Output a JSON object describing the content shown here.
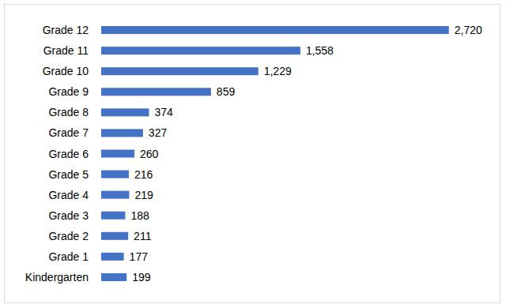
{
  "chart_data": {
    "type": "bar",
    "orientation": "horizontal",
    "categories": [
      "Grade 12",
      "Grade 11",
      "Grade 10",
      "Grade 9",
      "Grade 8",
      "Grade 7",
      "Grade 6",
      "Grade 5",
      "Grade 4",
      "Grade 3",
      "Grade 2",
      "Grade 1",
      "Kindergarten"
    ],
    "values": [
      2720,
      1558,
      1229,
      859,
      374,
      327,
      260,
      216,
      219,
      188,
      211,
      177,
      199
    ],
    "value_labels": [
      "2,720",
      "1,558",
      "1,229",
      "859",
      "374",
      "327",
      "260",
      "216",
      "219",
      "188",
      "211",
      "177",
      "199"
    ],
    "color": "#4472c4",
    "xlim": [
      0,
      3000
    ],
    "data_labels": true,
    "tick_labels": "y",
    "grid": false
  }
}
